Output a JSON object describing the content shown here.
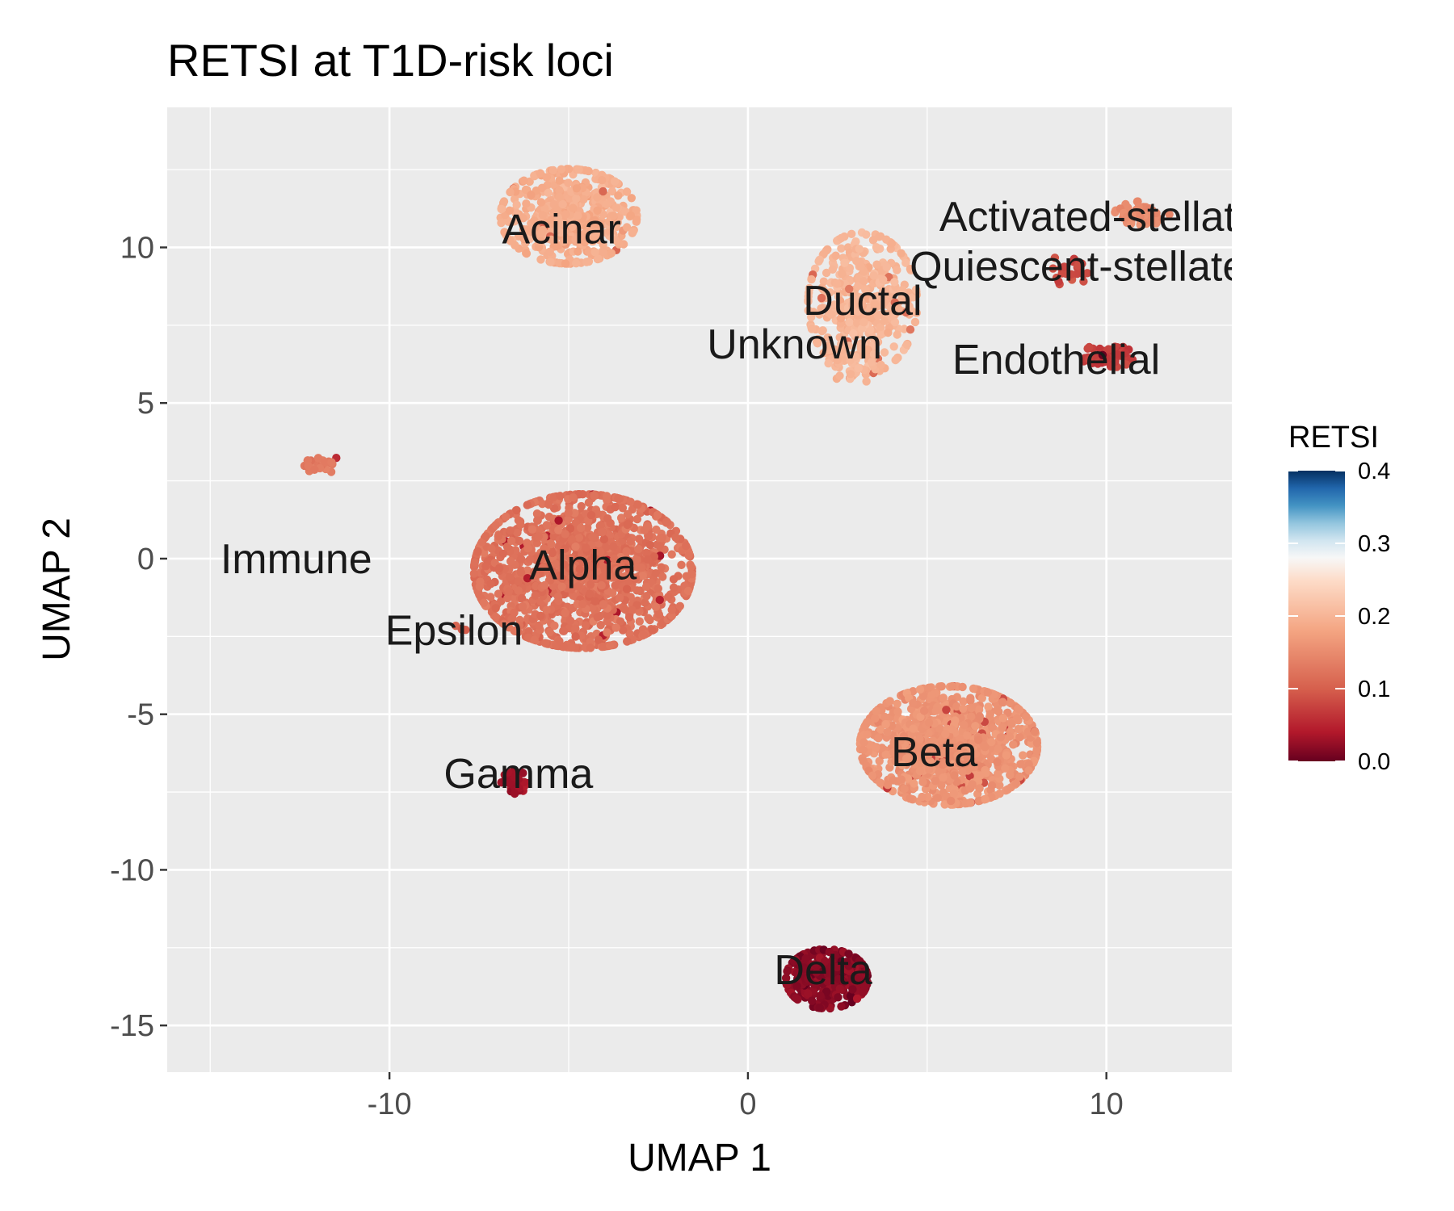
{
  "chart_data": {
    "type": "scatter",
    "title": "RETSI at T1D-risk loci",
    "xlabel": "UMAP 1",
    "ylabel": "UMAP 2",
    "xlim": [
      -16.2,
      13.5
    ],
    "ylim": [
      -16.5,
      14.5
    ],
    "x_ticks": [
      -10,
      0,
      10
    ],
    "y_ticks": [
      10,
      5,
      0,
      -5,
      -10,
      -15
    ],
    "grid": true,
    "legend": {
      "title": "RETSI",
      "position": "right",
      "ticks": [
        "0.4",
        "0.3",
        "0.2",
        "0.1",
        "0.0"
      ],
      "range": [
        0.0,
        0.4
      ],
      "colormap": [
        "#67001f",
        "#b2182b",
        "#d6604d",
        "#f4a582",
        "#fddbc7",
        "#f7f7f7",
        "#d1e5f0",
        "#92c5de",
        "#4393c3",
        "#2166ac",
        "#053061"
      ]
    },
    "clusters": [
      {
        "name": "Acinar",
        "center": [
          -5.0,
          11.0
        ],
        "spread": [
          1.0,
          0.8
        ],
        "value": 0.19,
        "n": 500,
        "label_pos": [
          -5.2,
          10.6
        ]
      },
      {
        "name": "Ductal",
        "center": [
          3.2,
          8.2
        ],
        "spread": [
          0.8,
          1.2
        ],
        "value": 0.2,
        "n": 420,
        "label_pos": [
          3.2,
          8.3
        ]
      },
      {
        "name": "Unknown",
        "center": [
          3.0,
          6.2
        ],
        "spread": [
          0.4,
          0.3
        ],
        "value": 0.2,
        "n": 40,
        "label_pos": [
          1.3,
          6.9
        ]
      },
      {
        "name": "Activated-stellate",
        "center": [
          11.0,
          11.1
        ],
        "spread": [
          0.4,
          0.2
        ],
        "value": 0.15,
        "n": 60,
        "label_pos": [
          9.8,
          11.0
        ]
      },
      {
        "name": "Quiescent-stellate",
        "center": [
          9.0,
          9.3
        ],
        "spread": [
          0.3,
          0.3
        ],
        "value": 0.08,
        "n": 25,
        "label_pos": [
          9.2,
          9.4
        ]
      },
      {
        "name": "Endothelial",
        "center": [
          10.0,
          6.5
        ],
        "spread": [
          0.4,
          0.2
        ],
        "value": 0.07,
        "n": 70,
        "label_pos": [
          8.6,
          6.4
        ]
      },
      {
        "name": "Alpha",
        "center": [
          -4.6,
          -0.4
        ],
        "spread": [
          1.6,
          1.3
        ],
        "value": 0.12,
        "n": 1400,
        "label_pos": [
          -4.6,
          -0.2
        ]
      },
      {
        "name": "Immune",
        "center": [
          -11.8,
          3.0
        ],
        "spread": [
          0.3,
          0.15
        ],
        "value": 0.13,
        "n": 25,
        "label_pos": [
          -12.6,
          0.0
        ]
      },
      {
        "name": "Epsilon",
        "center": [
          -8.0,
          -2.2
        ],
        "spread": [
          0.1,
          0.1
        ],
        "value": 0.1,
        "n": 5,
        "label_pos": [
          -8.2,
          -2.3
        ]
      },
      {
        "name": "Gamma",
        "center": [
          -6.5,
          -7.2
        ],
        "spread": [
          0.2,
          0.2
        ],
        "value": 0.03,
        "n": 40,
        "label_pos": [
          -6.4,
          -6.9
        ]
      },
      {
        "name": "Beta",
        "center": [
          5.6,
          -6.0
        ],
        "spread": [
          1.3,
          1.0
        ],
        "value": 0.16,
        "n": 1000,
        "label_pos": [
          5.2,
          -6.2
        ]
      },
      {
        "name": "Delta",
        "center": [
          2.2,
          -13.5
        ],
        "spread": [
          0.6,
          0.5
        ],
        "value": 0.02,
        "n": 320,
        "label_pos": [
          2.1,
          -13.2
        ]
      }
    ]
  }
}
